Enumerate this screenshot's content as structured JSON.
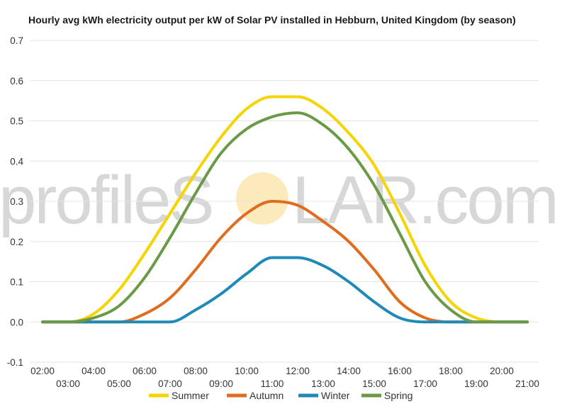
{
  "chart_data": {
    "type": "line",
    "title": "Hourly avg kWh electricity output per kW of Solar PV installed in Hebburn, United Kingdom (by season)",
    "xlabel": "",
    "ylabel": "",
    "x": [
      "02:00",
      "03:00",
      "04:00",
      "05:00",
      "06:00",
      "07:00",
      "08:00",
      "09:00",
      "10:00",
      "11:00",
      "12:00",
      "13:00",
      "14:00",
      "15:00",
      "16:00",
      "17:00",
      "18:00",
      "19:00",
      "20:00",
      "21:00"
    ],
    "ylim": [
      -0.1,
      0.7
    ],
    "yticks": [
      -0.1,
      0.0,
      0.1,
      0.2,
      0.3,
      0.4,
      0.5,
      0.6,
      0.7
    ],
    "ytick_labels": [
      "-0.1",
      "0.0",
      "0.1",
      "0.2",
      "0.3",
      "0.4",
      "0.5",
      "0.6",
      "0.7"
    ],
    "grid": true,
    "legend_position": "bottom",
    "series": [
      {
        "name": "Summer",
        "color": "#f5d400",
        "values": [
          0.0,
          0.0,
          0.02,
          0.08,
          0.17,
          0.27,
          0.37,
          0.46,
          0.53,
          0.56,
          0.56,
          0.53,
          0.47,
          0.39,
          0.27,
          0.14,
          0.05,
          0.01,
          0.0,
          0.0
        ]
      },
      {
        "name": "Autumn",
        "color": "#e06d1f",
        "values": [
          0.0,
          0.0,
          0.0,
          0.0,
          0.02,
          0.06,
          0.13,
          0.21,
          0.27,
          0.3,
          0.29,
          0.25,
          0.2,
          0.13,
          0.05,
          0.01,
          0.0,
          0.0,
          0.0,
          0.0
        ]
      },
      {
        "name": "Winter",
        "color": "#1f8ab8",
        "values": [
          0.0,
          0.0,
          0.0,
          0.0,
          0.0,
          0.0,
          0.03,
          0.07,
          0.12,
          0.16,
          0.16,
          0.14,
          0.1,
          0.05,
          0.01,
          0.0,
          0.0,
          0.0,
          0.0,
          0.0
        ]
      },
      {
        "name": "Spring",
        "color": "#6a9a45",
        "values": [
          0.0,
          0.0,
          0.01,
          0.04,
          0.11,
          0.21,
          0.32,
          0.42,
          0.48,
          0.51,
          0.52,
          0.49,
          0.43,
          0.34,
          0.22,
          0.1,
          0.03,
          0.0,
          0.0,
          0.0
        ]
      }
    ]
  },
  "watermark": {
    "text_left": "profileS",
    "text_right": "LAR.com",
    "sun_color": "#fbe3a6"
  }
}
